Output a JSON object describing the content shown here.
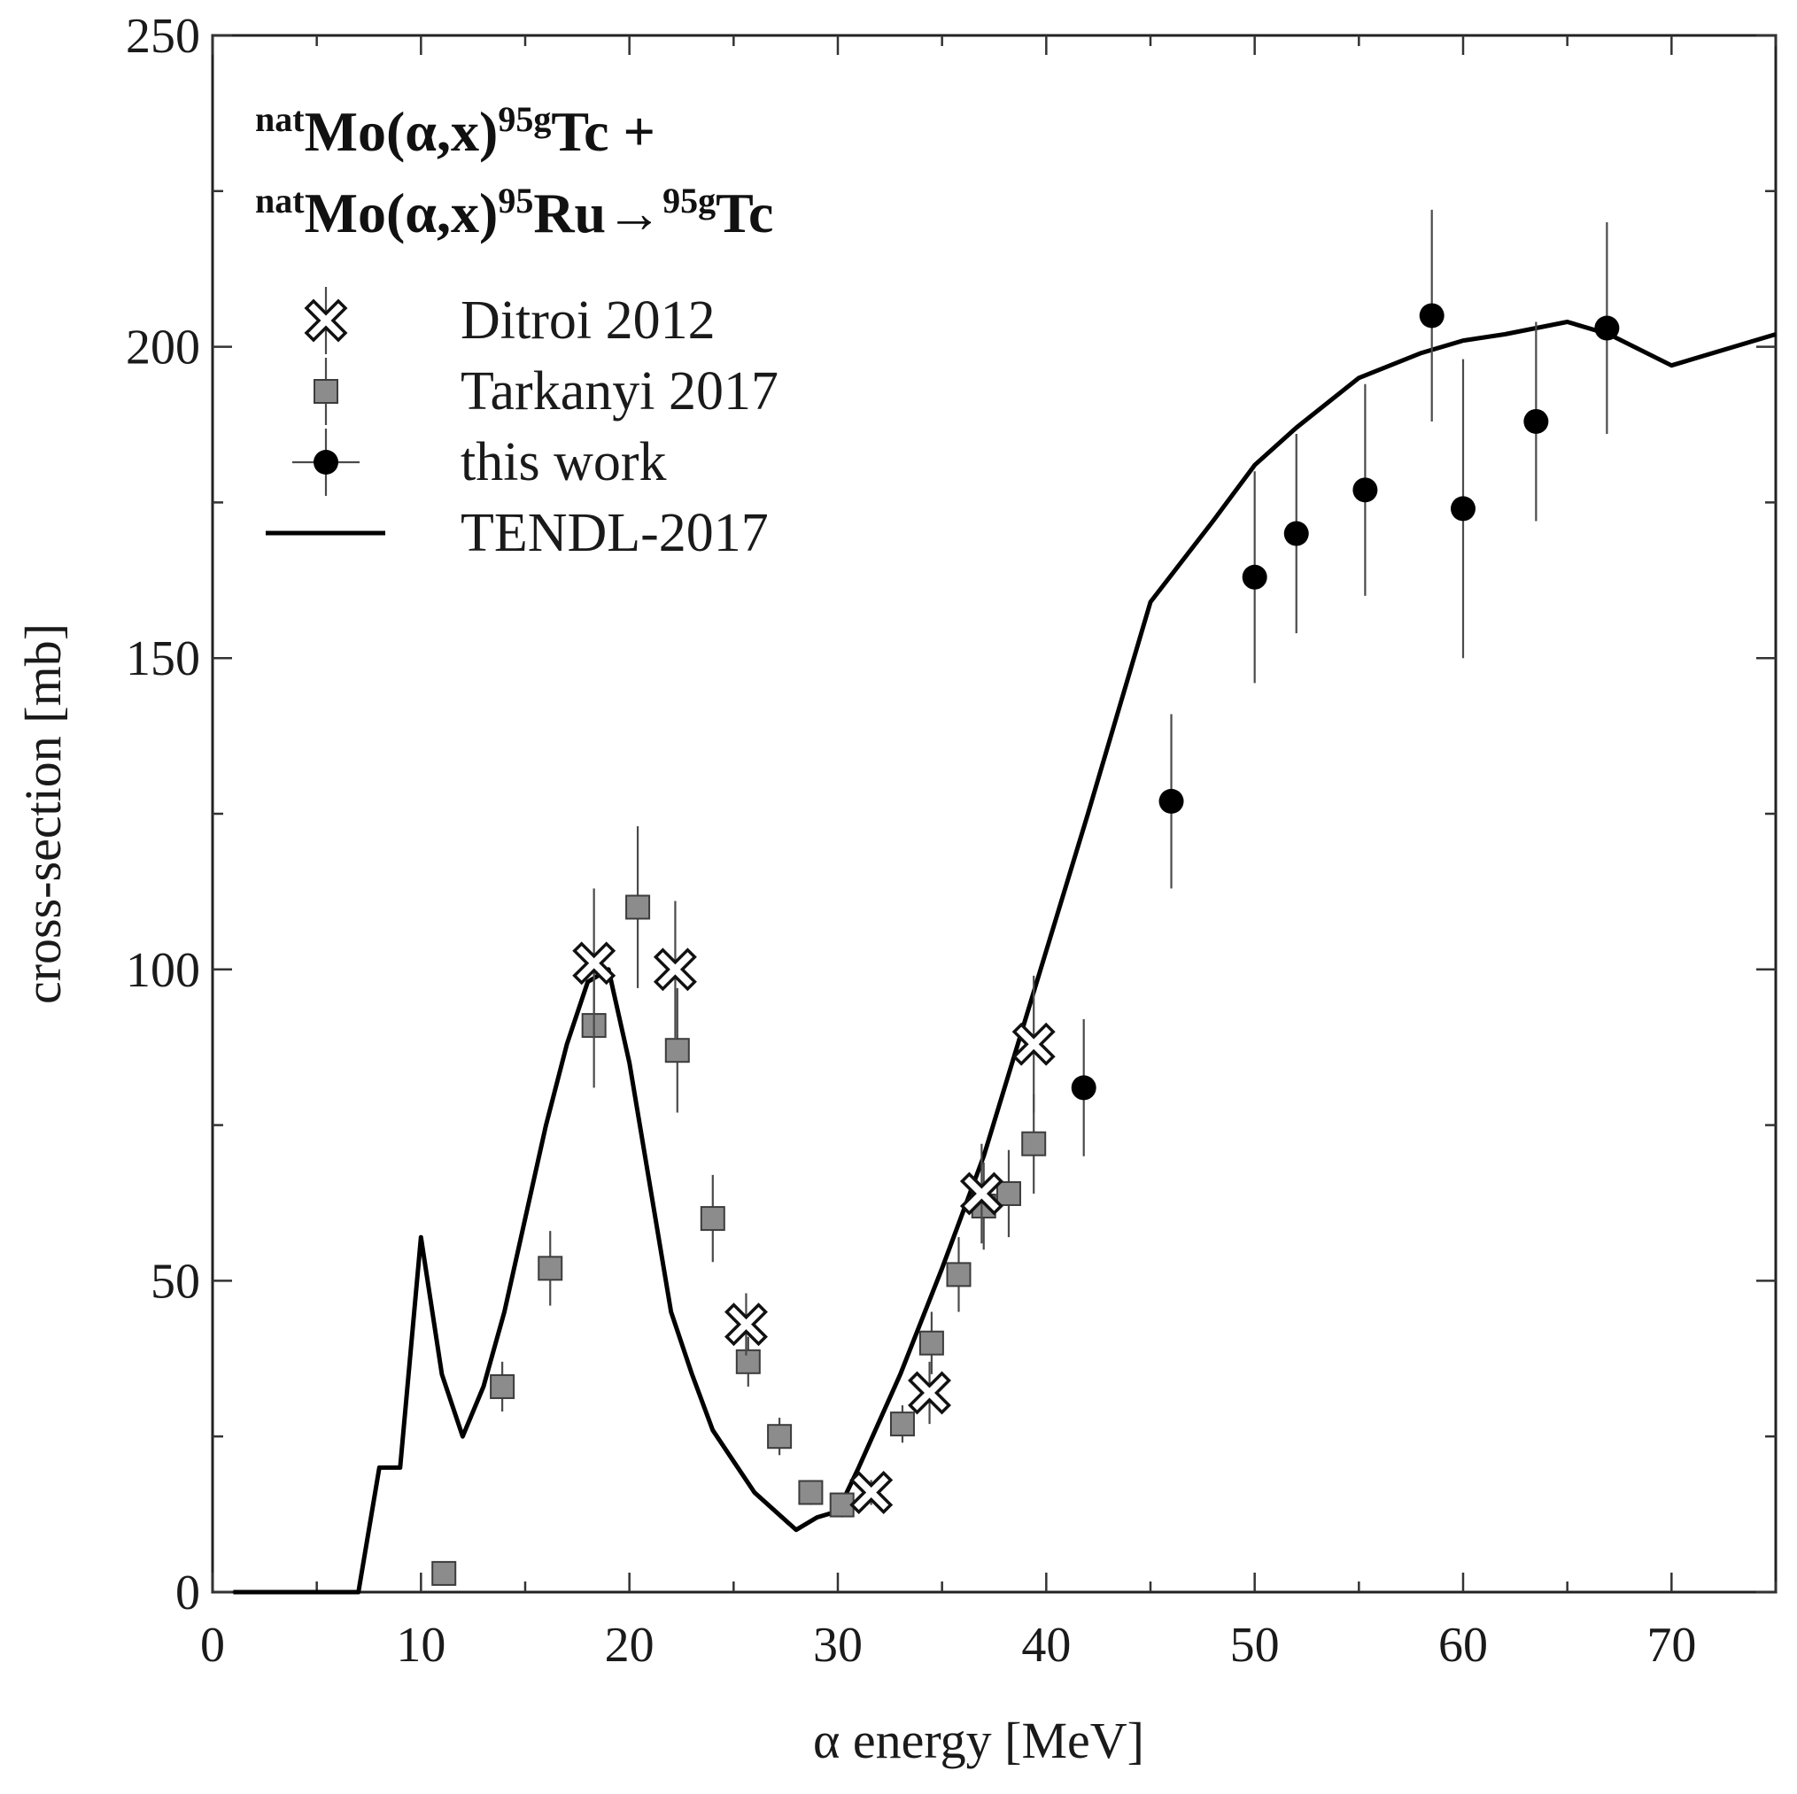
{
  "chart_data": {
    "type": "scatter",
    "title_line1": {
      "parts": [
        {
          "text": "nat",
          "sup": true
        },
        {
          "text": "Mo(α,x)",
          "sup": false
        },
        {
          "text": "95g",
          "sup": true
        },
        {
          "text": "Tc +",
          "sup": false
        }
      ]
    },
    "title_line2": {
      "parts": [
        {
          "text": "nat",
          "sup": true
        },
        {
          "text": "Mo(α,x)",
          "sup": false
        },
        {
          "text": "95",
          "sup": true
        },
        {
          "text": "Ru→",
          "sup": false
        },
        {
          "text": "95g",
          "sup": true
        },
        {
          "text": "Tc",
          "sup": false
        }
      ]
    },
    "xlabel": "α energy [MeV]",
    "ylabel": "cross-section [mb]",
    "xlim": [
      0,
      75
    ],
    "ylim": [
      0,
      250
    ],
    "xticks": [
      0,
      10,
      20,
      30,
      40,
      50,
      60,
      70
    ],
    "yticks": [
      0,
      50,
      100,
      150,
      200,
      250
    ],
    "minor_x_step": 5,
    "minor_y_step": 25,
    "legend": [
      {
        "label": "Ditroi 2012",
        "marker": "cross"
      },
      {
        "label": "Tarkanyi 2017",
        "marker": "square"
      },
      {
        "label": "this work",
        "marker": "circle"
      },
      {
        "label": "TENDL-2017",
        "marker": "line"
      }
    ],
    "series": [
      {
        "name": "Ditroi 2012",
        "marker": "cross",
        "color": "#ffffff",
        "points": [
          {
            "x": 18.3,
            "y": 101,
            "err": 12
          },
          {
            "x": 22.2,
            "y": 100,
            "err": 11
          },
          {
            "x": 25.6,
            "y": 43,
            "err": 5
          },
          {
            "x": 31.6,
            "y": 16,
            "err": 2
          },
          {
            "x": 34.4,
            "y": 32,
            "err": 5
          },
          {
            "x": 36.9,
            "y": 64,
            "err": 8
          },
          {
            "x": 39.4,
            "y": 88,
            "err": 11
          }
        ]
      },
      {
        "name": "Tarkanyi 2017",
        "marker": "square",
        "color": "#8a8a8a",
        "points": [
          {
            "x": 11.1,
            "y": 3,
            "err": 0
          },
          {
            "x": 13.9,
            "y": 33,
            "err": 4
          },
          {
            "x": 16.2,
            "y": 52,
            "err": 6
          },
          {
            "x": 18.3,
            "y": 91,
            "err": 10
          },
          {
            "x": 20.4,
            "y": 110,
            "err": 13
          },
          {
            "x": 22.3,
            "y": 87,
            "err": 10
          },
          {
            "x": 24.0,
            "y": 60,
            "err": 7
          },
          {
            "x": 25.7,
            "y": 37,
            "err": 4
          },
          {
            "x": 27.2,
            "y": 25,
            "err": 3
          },
          {
            "x": 28.7,
            "y": 16,
            "err": 2
          },
          {
            "x": 30.2,
            "y": 14,
            "err": 2
          },
          {
            "x": 33.1,
            "y": 27,
            "err": 3
          },
          {
            "x": 34.5,
            "y": 40,
            "err": 5
          },
          {
            "x": 35.8,
            "y": 51,
            "err": 6
          },
          {
            "x": 37.0,
            "y": 62,
            "err": 7
          },
          {
            "x": 38.2,
            "y": 64,
            "err": 7
          },
          {
            "x": 39.4,
            "y": 72,
            "err": 8
          }
        ]
      },
      {
        "name": "this work",
        "marker": "circle",
        "color": "#000000",
        "points": [
          {
            "x": 41.8,
            "y": 81,
            "err": 11
          },
          {
            "x": 46.0,
            "y": 127,
            "err": 14
          },
          {
            "x": 50.0,
            "y": 163,
            "err": 17
          },
          {
            "x": 52.0,
            "y": 170,
            "err": 16
          },
          {
            "x": 55.3,
            "y": 177,
            "err": 17
          },
          {
            "x": 58.5,
            "y": 205,
            "err": 17
          },
          {
            "x": 60.0,
            "y": 174,
            "err": 24
          },
          {
            "x": 63.5,
            "y": 188,
            "err": 16
          },
          {
            "x": 66.9,
            "y": 203,
            "err": 17
          }
        ]
      },
      {
        "name": "TENDL-2017",
        "marker": "line",
        "color": "#000000",
        "points": [
          {
            "x": 1,
            "y": 0
          },
          {
            "x": 7,
            "y": 0
          },
          {
            "x": 8,
            "y": 20
          },
          {
            "x": 9,
            "y": 20
          },
          {
            "x": 10,
            "y": 57
          },
          {
            "x": 11,
            "y": 35
          },
          {
            "x": 12,
            "y": 25
          },
          {
            "x": 13,
            "y": 33
          },
          {
            "x": 14,
            "y": 45
          },
          {
            "x": 15,
            "y": 60
          },
          {
            "x": 16,
            "y": 75
          },
          {
            "x": 17,
            "y": 88
          },
          {
            "x": 18,
            "y": 98
          },
          {
            "x": 19,
            "y": 100
          },
          {
            "x": 20,
            "y": 85
          },
          {
            "x": 21,
            "y": 65
          },
          {
            "x": 22,
            "y": 45
          },
          {
            "x": 23,
            "y": 35
          },
          {
            "x": 24,
            "y": 26
          },
          {
            "x": 25,
            "y": 21
          },
          {
            "x": 26,
            "y": 16
          },
          {
            "x": 27,
            "y": 13
          },
          {
            "x": 28,
            "y": 10
          },
          {
            "x": 29,
            "y": 12
          },
          {
            "x": 30,
            "y": 13
          },
          {
            "x": 31,
            "y": 20
          },
          {
            "x": 33,
            "y": 35
          },
          {
            "x": 35,
            "y": 52
          },
          {
            "x": 37,
            "y": 70
          },
          {
            "x": 39,
            "y": 92
          },
          {
            "x": 42,
            "y": 125
          },
          {
            "x": 45,
            "y": 159
          },
          {
            "x": 48,
            "y": 172
          },
          {
            "x": 50,
            "y": 181
          },
          {
            "x": 52,
            "y": 187
          },
          {
            "x": 55,
            "y": 195
          },
          {
            "x": 58,
            "y": 199
          },
          {
            "x": 60,
            "y": 201
          },
          {
            "x": 62,
            "y": 202
          },
          {
            "x": 65,
            "y": 204
          },
          {
            "x": 67,
            "y": 202
          },
          {
            "x": 70,
            "y": 197
          },
          {
            "x": 75,
            "y": 202
          }
        ]
      }
    ]
  }
}
